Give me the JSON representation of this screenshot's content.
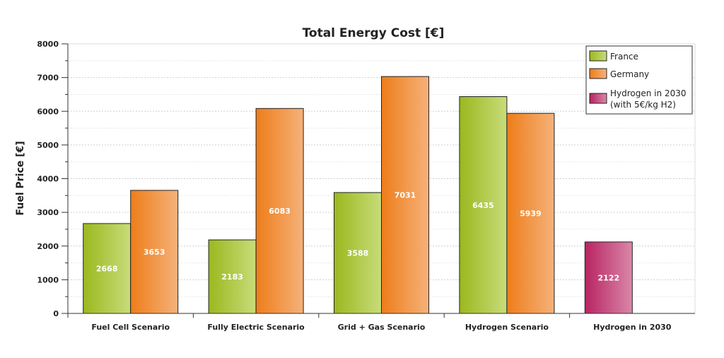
{
  "chart_data": {
    "type": "bar",
    "title": "Total Energy Cost [€]",
    "xlabel": "",
    "ylabel": "Fuel Price [€]",
    "ylim": [
      0,
      8000
    ],
    "yticks": [
      0,
      1000,
      2000,
      3000,
      4000,
      5000,
      6000,
      7000,
      8000
    ],
    "grid": true,
    "legend_position": "top-right",
    "categories": [
      "Fuel Cell Scenario",
      "Fully Electric Scenario",
      "Grid + Gas Scenario",
      "Hydrogen Scenario",
      "Hydrogen in 2030"
    ],
    "series": [
      {
        "name": "France",
        "color": "#9bb81e",
        "color_light": "#c8dc7a",
        "values": [
          2668,
          2183,
          3588,
          6435,
          null
        ]
      },
      {
        "name": "Germany",
        "color": "#ee7d1a",
        "color_light": "#f5b27a",
        "values": [
          3653,
          6083,
          7031,
          5939,
          null
        ]
      },
      {
        "name": "Hydrogen in 2030\n(with 5€/kg H2)",
        "color": "#b82462",
        "color_light": "#d987a8",
        "values": [
          null,
          null,
          null,
          null,
          2122
        ]
      }
    ]
  }
}
